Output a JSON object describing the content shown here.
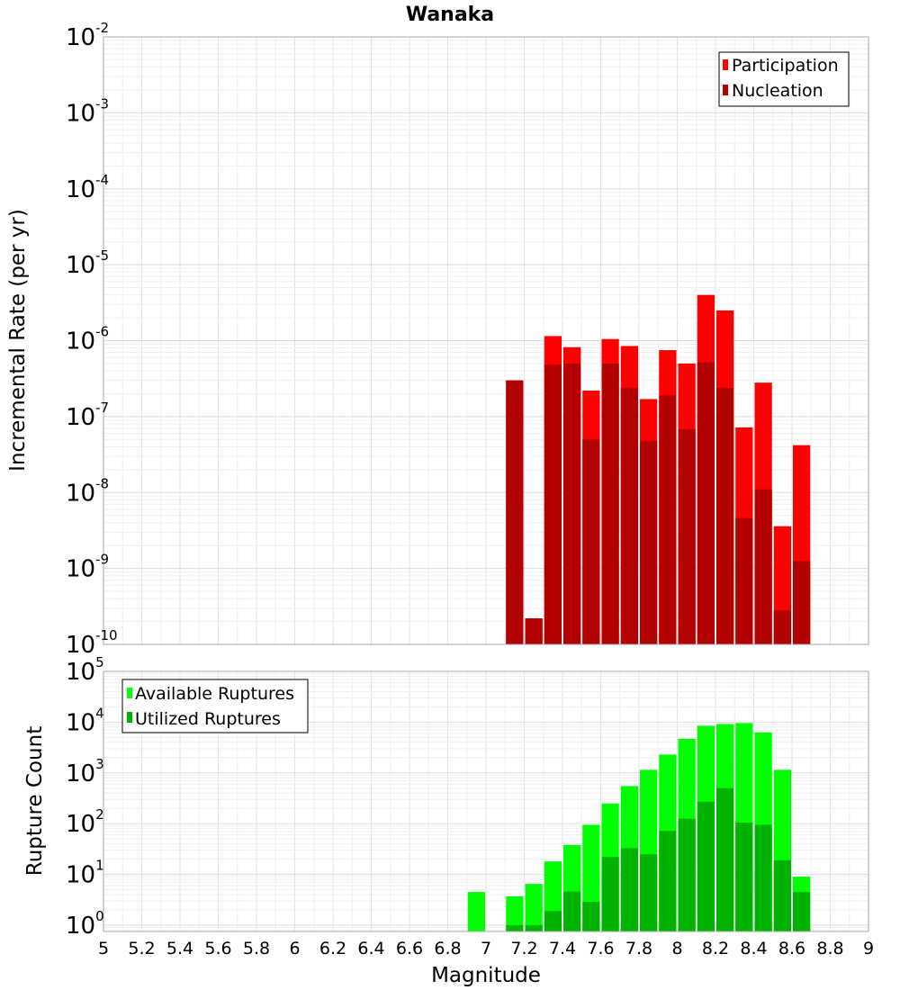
{
  "chart_data": [
    {
      "type": "bar",
      "title": "Wanaka",
      "xlabel": "",
      "ylabel": "Incremental Rate (per yr)",
      "xlim": [
        5,
        9
      ],
      "ylim": [
        1e-10,
        0.01
      ],
      "yscale": "log",
      "grid": true,
      "legend_position": "top-right",
      "y_ticks": [
        {
          "base": "10",
          "exp": "-2"
        },
        {
          "base": "10",
          "exp": "-3"
        },
        {
          "base": "10",
          "exp": "-4"
        },
        {
          "base": "10",
          "exp": "-5"
        },
        {
          "base": "10",
          "exp": "-6"
        },
        {
          "base": "10",
          "exp": "-7"
        },
        {
          "base": "10",
          "exp": "-8"
        },
        {
          "base": "10",
          "exp": "-9"
        },
        {
          "base": "10",
          "exp": "-10"
        }
      ],
      "x": [
        7.15,
        7.25,
        7.35,
        7.45,
        7.55,
        7.65,
        7.75,
        7.85,
        7.95,
        8.05,
        8.15,
        8.25,
        8.35,
        8.45,
        8.55,
        8.65
      ],
      "series": [
        {
          "name": "Participation",
          "color": "#ff0000",
          "values": [
            3e-07,
            2.2e-10,
            1.15e-06,
            8.2e-07,
            2.2e-07,
            1.05e-06,
            8.5e-07,
            1.7e-07,
            7.5e-07,
            5e-07,
            4e-06,
            2.5e-06,
            7.2e-08,
            2.8e-07,
            3.6e-09,
            4.2e-08
          ]
        },
        {
          "name": "Nucleation",
          "color": "#b30000",
          "values": [
            3e-07,
            2.2e-10,
            4.8e-07,
            5e-07,
            5e-08,
            5e-07,
            2.4e-07,
            4.8e-08,
            1.9e-07,
            6.8e-08,
            5.2e-07,
            2.4e-07,
            4.6e-09,
            1.1e-08,
            2.8e-10,
            1.25e-09
          ]
        }
      ]
    },
    {
      "type": "bar",
      "title": "",
      "xlabel": "Magnitude",
      "ylabel": "Rupture Count",
      "xlim": [
        5,
        9
      ],
      "ylim": [
        0.75,
        100000.0
      ],
      "yscale": "log",
      "grid": true,
      "legend_position": "top-left",
      "x_tick_labels": [
        "5",
        "5.2",
        "5.4",
        "5.6",
        "5.8",
        "6",
        "6.2",
        "6.4",
        "6.6",
        "6.8",
        "7",
        "7.2",
        "7.4",
        "7.6",
        "7.8",
        "8",
        "8.2",
        "8.4",
        "8.6",
        "8.8",
        "9"
      ],
      "y_ticks": [
        {
          "base": "10",
          "exp": "5"
        },
        {
          "base": "10",
          "exp": "4"
        },
        {
          "base": "10",
          "exp": "3"
        },
        {
          "base": "10",
          "exp": "2"
        },
        {
          "base": "10",
          "exp": "1"
        },
        {
          "base": "10",
          "exp": "0"
        }
      ],
      "x": [
        6.95,
        7.15,
        7.25,
        7.35,
        7.45,
        7.55,
        7.65,
        7.75,
        7.85,
        7.95,
        8.05,
        8.15,
        8.25,
        8.35,
        8.45,
        8.55,
        8.65
      ],
      "series": [
        {
          "name": "Available Ruptures",
          "color": "#00ff00",
          "values": [
            4.5,
            3.7,
            6.5,
            18,
            38,
            95,
            250,
            550,
            1150,
            2300,
            4700,
            8500,
            9200,
            9600,
            6300,
            1150,
            9
          ]
        },
        {
          "name": "Utilized Ruptures",
          "color": "#00b300",
          "values": [
            null,
            1,
            1,
            1.9,
            4.6,
            2.9,
            22,
            33,
            25,
            72,
            125,
            270,
            500,
            105,
            95,
            19,
            4.5
          ]
        }
      ]
    }
  ]
}
